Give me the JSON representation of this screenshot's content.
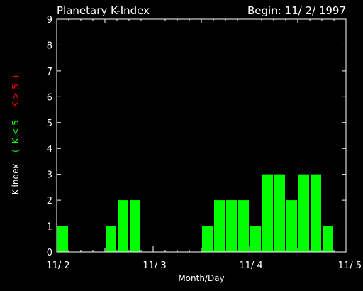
{
  "header": {
    "title": "Planetary K-Index",
    "begin": "Begin: 11/ 2/ 1997"
  },
  "chart_data": {
    "type": "bar",
    "title": "Planetary K-Index",
    "xlabel": "Month/Day",
    "ylabel": {
      "prefix": "K-index",
      "open": "(",
      "low": "K < 5",
      "high": "K > 5",
      "close": ")"
    },
    "ylim": [
      0,
      9
    ],
    "yticks": [
      "0",
      "1",
      "2",
      "3",
      "4",
      "5",
      "6",
      "7",
      "8",
      "9"
    ],
    "xticks": [
      {
        "label": "11/ 2",
        "day": 0
      },
      {
        "label": "11/ 3",
        "day": 1
      },
      {
        "label": "11/ 4",
        "day": 2
      },
      {
        "label": "11/ 5",
        "day": 3
      }
    ],
    "interval_hours": 3,
    "values": [
      1,
      0,
      0,
      0,
      1,
      2,
      2,
      0,
      0,
      0,
      0,
      0,
      1,
      2,
      2,
      2,
      1,
      3,
      3,
      2,
      3,
      3,
      1,
      0
    ],
    "colors": {
      "background": "#000000",
      "frame": "#ffffff",
      "text": "#ffffff",
      "bar_low": "#00ff00",
      "bar_high": "#ff0000",
      "label_low": "#00ff00",
      "label_high": "#ff0000"
    }
  }
}
